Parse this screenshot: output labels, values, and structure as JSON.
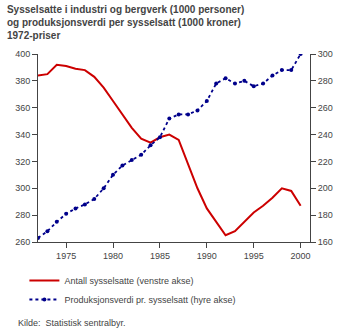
{
  "chart_data": {
    "type": "line",
    "title": "Sysselsatte i industri og bergverk (1000 personer)\nog produksjonsverdi per sysselsatt (1000 kroner)\n1972-priser",
    "annotations": [
      "Kilde:  Statistisk sentralbyr."
    ],
    "x": [
      1972,
      1973,
      1974,
      1975,
      1976,
      1977,
      1978,
      1979,
      1980,
      1981,
      1982,
      1983,
      1984,
      1985,
      1986,
      1987,
      1988,
      1989,
      1990,
      1991,
      1992,
      1993,
      1994,
      1995,
      1996,
      1997,
      1998,
      1999,
      2000
    ],
    "series": [
      {
        "name": "Antall sysselsatte (venstre akse)",
        "color": "#cc0000",
        "line_style": "solid",
        "values": [
          384,
          385,
          392,
          391,
          389,
          388,
          383,
          375,
          365,
          355,
          345,
          337,
          334,
          338,
          340,
          336,
          318,
          300,
          285,
          275,
          265,
          268,
          275,
          282,
          287,
          293,
          300,
          298,
          287
        ]
      },
      {
        "name": "Produksjonsverdi pr. sysselsatt (hyre akse)",
        "color": "#00008B",
        "line_style": "dotted",
        "marker": "circle",
        "axis": "y2",
        "values": [
          163,
          168,
          175,
          181,
          185,
          188,
          192,
          200,
          210,
          217,
          221,
          225,
          232,
          238,
          252,
          255,
          255,
          258,
          265,
          278,
          282,
          278,
          280,
          276,
          278,
          284,
          288,
          288,
          300
        ]
      }
    ],
    "xlim": [
      1972,
      2001
    ],
    "xticks": [
      1975,
      1980,
      1985,
      1990,
      1995,
      2000
    ],
    "ylim": [
      260,
      400
    ],
    "yticks": [
      260,
      280,
      300,
      320,
      340,
      360,
      380,
      400
    ],
    "y2lim": [
      160,
      300
    ],
    "y2ticks": [
      160,
      180,
      200,
      220,
      240,
      260,
      280,
      300
    ],
    "grid": false,
    "legend": "below"
  }
}
